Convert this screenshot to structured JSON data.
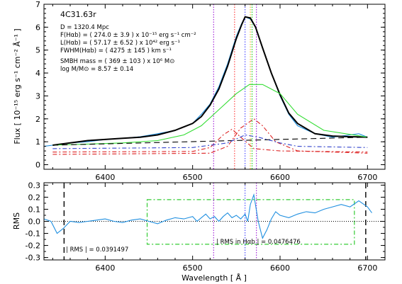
{
  "chart_data": [
    {
      "type": "line",
      "title": "4C31.63r",
      "ylabel": "Flux [ 10⁻¹⁵ erg s⁻¹ cm⁻² Å⁻¹ ]",
      "xlim": [
        6330,
        6720
      ],
      "ylim": [
        -0.2,
        7.0
      ],
      "xticks": [
        6400,
        6500,
        6600,
        6700
      ],
      "yticks": [
        0,
        1,
        2,
        3,
        4,
        5,
        6,
        7
      ],
      "annotations": [
        "D = 1320.4 Mpc",
        "F(Hαb) = (  274.0 ±   3.9  ) x 10⁻¹⁵ erg s⁻¹ cm⁻²",
        "L(Hαb) = (  57.17 ±  6.52  ) x 10⁴² erg s⁻¹",
        "FWHM(Hαb) = (  4275 ±   145  ) km s⁻¹",
        "SMBH mass = (  369 ±  103  ) x 10⁶ M⊙",
        "log M/M⊙ =   8.57 ±  0.14"
      ],
      "vlines": [
        {
          "x": 6524,
          "color": "#9400d3"
        },
        {
          "x": 6548,
          "color": "#ff2020"
        },
        {
          "x": 6560,
          "color": "#3030ff"
        },
        {
          "x": 6566,
          "color": "#ffa500"
        },
        {
          "x": 6568,
          "color": "#00cc00"
        },
        {
          "x": 6573,
          "color": "#9400d3"
        }
      ],
      "series": [
        {
          "role": "observed",
          "color": "#1f8fe0",
          "dash": "solid",
          "x": [
            6330,
            6340,
            6360,
            6380,
            6400,
            6420,
            6440,
            6460,
            6480,
            6500,
            6510,
            6520,
            6530,
            6540,
            6550,
            6556,
            6560,
            6566,
            6572,
            6580,
            6590,
            6600,
            6610,
            6620,
            6640,
            6660,
            6680,
            6690,
            6700
          ],
          "y": [
            0.8,
            0.85,
            0.95,
            1.0,
            1.1,
            1.15,
            1.22,
            1.35,
            1.5,
            1.8,
            2.2,
            2.65,
            3.4,
            4.4,
            5.6,
            6.15,
            6.45,
            6.35,
            6.0,
            5.1,
            4.0,
            3.0,
            2.2,
            1.7,
            1.35,
            1.2,
            1.3,
            1.35,
            1.2
          ]
        },
        {
          "role": "total fit",
          "color": "#000000",
          "dash": "solid",
          "x": [
            6340,
            6360,
            6380,
            6400,
            6420,
            6440,
            6460,
            6480,
            6500,
            6510,
            6520,
            6530,
            6540,
            6550,
            6556,
            6560,
            6566,
            6572,
            6580,
            6590,
            6600,
            6610,
            6620,
            6640,
            6660,
            6680,
            6700
          ],
          "y": [
            0.85,
            0.95,
            1.05,
            1.1,
            1.15,
            1.2,
            1.3,
            1.5,
            1.8,
            2.1,
            2.6,
            3.3,
            4.3,
            5.5,
            6.1,
            6.45,
            6.4,
            6.0,
            5.1,
            4.0,
            3.05,
            2.25,
            1.8,
            1.35,
            1.25,
            1.22,
            1.2
          ]
        },
        {
          "role": "broad Hα",
          "color": "#33dd33",
          "dash": "solid",
          "x": [
            6340,
            6380,
            6420,
            6460,
            6490,
            6510,
            6530,
            6550,
            6565,
            6580,
            6600,
            6620,
            6650,
            6700
          ],
          "y": [
            0.85,
            0.9,
            0.95,
            1.05,
            1.3,
            1.7,
            2.4,
            3.1,
            3.5,
            3.5,
            3.1,
            2.2,
            1.5,
            1.2
          ]
        },
        {
          "role": "continuum",
          "color": "#000000",
          "dash": "8,5",
          "x": [
            6340,
            6700
          ],
          "y": [
            0.85,
            1.2
          ]
        },
        {
          "role": "narrow [N II] 6548",
          "color": "#dd2222",
          "dash": "6,3,2,3",
          "x": [
            6340,
            6500,
            6520,
            6535,
            6545,
            6555,
            6570,
            6600,
            6700
          ],
          "y": [
            0.55,
            0.58,
            0.75,
            1.3,
            1.55,
            1.2,
            0.7,
            0.6,
            0.55
          ]
        },
        {
          "role": "narrow Hα",
          "color": "#dd2222",
          "dash": "6,3,2,3",
          "x": [
            6340,
            6520,
            6540,
            6555,
            6570,
            6580,
            6595,
            6620,
            6700
          ],
          "y": [
            0.45,
            0.5,
            0.8,
            1.6,
            2.0,
            1.7,
            1.0,
            0.6,
            0.5
          ]
        },
        {
          "role": "narrow [N II] 6583",
          "color": "#3344cc",
          "dash": "6,3,2,3",
          "x": [
            6340,
            6500,
            6540,
            6560,
            6575,
            6600,
            6620,
            6700
          ],
          "y": [
            0.7,
            0.75,
            0.95,
            1.3,
            1.2,
            0.95,
            0.8,
            0.75
          ]
        }
      ]
    },
    {
      "type": "line",
      "xlabel": "Wavelength [ Å ]",
      "ylabel": "RMS",
      "xlim": [
        6330,
        6720
      ],
      "ylim": [
        -0.32,
        0.32
      ],
      "xticks": [
        6400,
        6500,
        6600,
        6700
      ],
      "yticks": [
        -0.3,
        -0.2,
        -0.1,
        0.0,
        0.1,
        0.2,
        0.3
      ],
      "annotations": [
        "| RMS | = 0.0391497",
        "| RMS in Hαb | = 0.0476476"
      ],
      "vlines": [
        {
          "x": 6353,
          "color": "#000000",
          "dash": "8,5"
        },
        {
          "x": 6698,
          "color": "#000000",
          "dash": "8,5"
        },
        {
          "x": 6524,
          "color": "#9400d3"
        },
        {
          "x": 6560,
          "color": "#3030ff"
        },
        {
          "x": 6573,
          "color": "#9400d3"
        }
      ],
      "box": {
        "x": [
          6448,
          6685
        ],
        "y": [
          -0.19,
          0.18
        ],
        "color": "#33cc33"
      },
      "series": [
        {
          "role": "residual",
          "color": "#1f8fe0",
          "x": [
            6330,
            6338,
            6345,
            6352,
            6360,
            6370,
            6380,
            6390,
            6400,
            6410,
            6420,
            6430,
            6440,
            6450,
            6460,
            6470,
            6480,
            6490,
            6500,
            6505,
            6510,
            6515,
            6520,
            6525,
            6530,
            6535,
            6540,
            6545,
            6550,
            6555,
            6560,
            6563,
            6566,
            6570,
            6575,
            6580,
            6585,
            6590,
            6595,
            6600,
            6610,
            6620,
            6630,
            6640,
            6650,
            6660,
            6670,
            6680,
            6690,
            6700,
            6705
          ],
          "y": [
            0.02,
            0.0,
            -0.1,
            -0.06,
            0.0,
            -0.01,
            0.0,
            0.01,
            0.02,
            0.0,
            -0.01,
            0.01,
            0.02,
            0.0,
            -0.02,
            0.01,
            0.03,
            0.02,
            0.04,
            0.0,
            0.03,
            0.06,
            0.02,
            0.04,
            0.0,
            0.04,
            0.07,
            0.03,
            0.05,
            0.02,
            0.06,
            0.0,
            0.14,
            0.22,
            0.0,
            -0.14,
            -0.07,
            0.02,
            0.08,
            0.05,
            0.03,
            0.06,
            0.08,
            0.07,
            0.1,
            0.12,
            0.14,
            0.12,
            0.17,
            0.12,
            0.07
          ]
        }
      ]
    }
  ]
}
